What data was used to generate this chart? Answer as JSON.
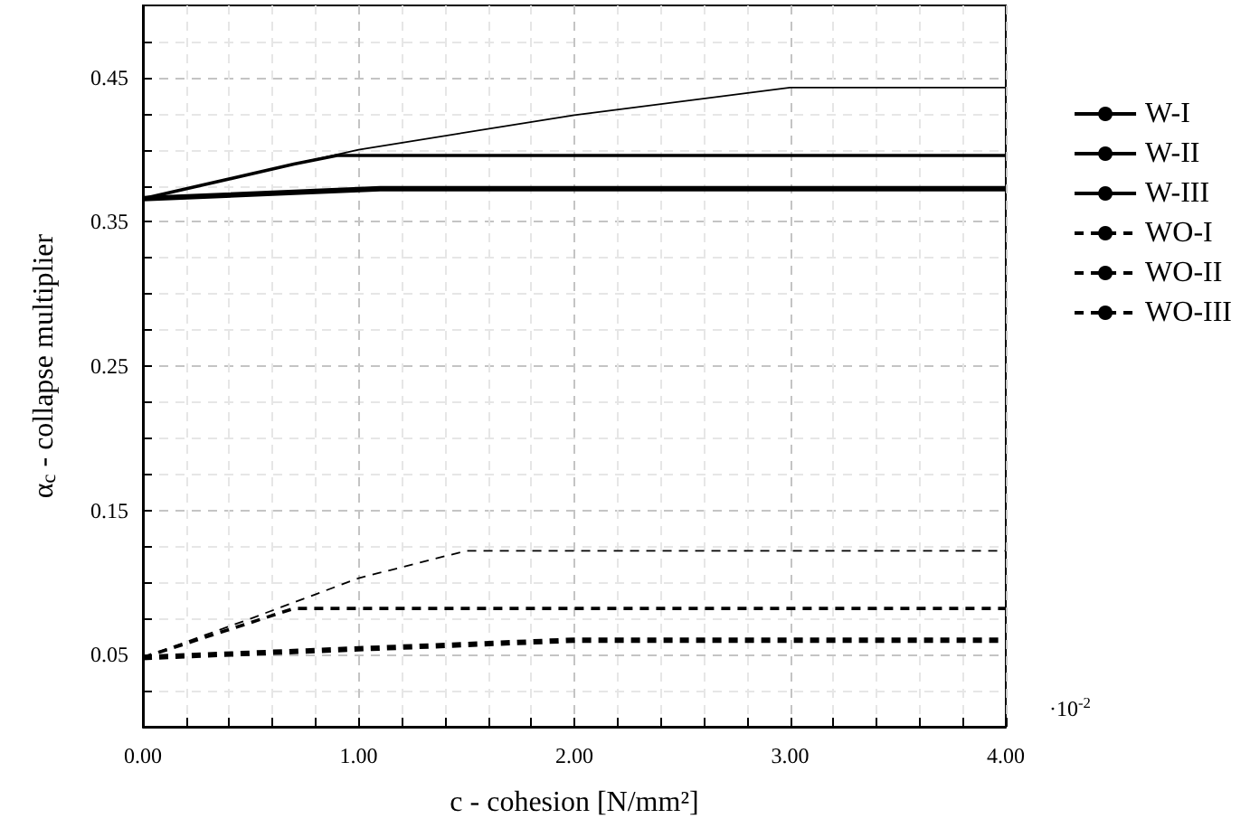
{
  "chart_data": {
    "type": "line",
    "xlabel": "c - cohesion [N/mm²]",
    "ylabel": "α$_{c}$ - collapse multiplier",
    "annotations": [
      "·10$^{-2}$"
    ],
    "xlim": [
      0,
      4
    ],
    "ylim": [
      0,
      0.5
    ],
    "xticks": [
      {
        "value": 0,
        "label": "0.00"
      },
      {
        "value": 0.2,
        "label": null
      },
      {
        "value": 0.4,
        "label": null
      },
      {
        "value": 0.6,
        "label": null
      },
      {
        "value": 0.8,
        "label": null
      },
      {
        "value": 1,
        "label": "1.00"
      },
      {
        "value": 1.2,
        "label": null
      },
      {
        "value": 1.4,
        "label": null
      },
      {
        "value": 1.6,
        "label": null
      },
      {
        "value": 1.8,
        "label": null
      },
      {
        "value": 2,
        "label": "2.00"
      },
      {
        "value": 2.2,
        "label": null
      },
      {
        "value": 2.4,
        "label": null
      },
      {
        "value": 2.6,
        "label": null
      },
      {
        "value": 2.8,
        "label": null
      },
      {
        "value": 3,
        "label": "3.00"
      },
      {
        "value": 3.2,
        "label": null
      },
      {
        "value": 3.4,
        "label": null
      },
      {
        "value": 3.6,
        "label": null
      },
      {
        "value": 3.8,
        "label": null
      },
      {
        "value": 4,
        "label": "4.00"
      }
    ],
    "yticks": [
      {
        "value": 0.025,
        "label": null
      },
      0.05,
      {
        "value": 0.075,
        "label": null
      },
      {
        "value": 0.1,
        "label": null
      },
      {
        "value": 0.125,
        "label": null
      },
      0.15,
      {
        "value": 0.175,
        "label": null
      },
      {
        "value": 0.2,
        "label": null
      },
      {
        "value": 0.225,
        "label": null
      },
      0.25,
      {
        "value": 0.275,
        "label": null
      },
      {
        "value": 0.3,
        "label": null
      },
      {
        "value": 0.325,
        "label": null
      },
      0.35,
      {
        "value": 0.375,
        "label": null
      },
      {
        "value": 0.4,
        "label": null
      },
      {
        "value": 0.425,
        "label": null
      },
      0.45,
      {
        "value": 0.475,
        "label": null
      }
    ],
    "grid": true,
    "legend": "right",
    "marker": "none",
    "series": [
      {
        "name": "W-I",
        "color": "#000000",
        "line_style": "solid",
        "x": [
          0,
          1.1,
          4
        ],
        "values": [
          0.366,
          0.373,
          0.373
        ]
      },
      {
        "name": "W-II",
        "color": "#000000",
        "line_style": "solid",
        "x": [
          0,
          0.7,
          0.9,
          4
        ],
        "values": [
          0.366,
          0.39,
          0.396,
          0.396
        ]
      },
      {
        "name": "W-III",
        "color": "#000000",
        "line_style": "solid",
        "x": [
          0,
          0.7,
          1,
          2,
          3,
          4
        ],
        "values": [
          0.366,
          0.39,
          0.4,
          0.424,
          0.443,
          0.443
        ]
      },
      {
        "name": "WO-I",
        "color": "#000000",
        "line_style": "dashed",
        "x": [
          0,
          1,
          2,
          4
        ],
        "values": [
          0.048,
          0.054,
          0.06,
          0.06
        ]
      },
      {
        "name": "WO-II",
        "color": "#000000",
        "line_style": "dashed",
        "x": [
          0,
          0.7,
          4
        ],
        "values": [
          0.048,
          0.082,
          0.082
        ]
      },
      {
        "name": "WO-III",
        "color": "#000000",
        "line_style": "dashed",
        "x": [
          0,
          0.5,
          1,
          1.5,
          4
        ],
        "values": [
          0.048,
          0.075,
          0.103,
          0.122,
          0.122
        ]
      }
    ]
  }
}
